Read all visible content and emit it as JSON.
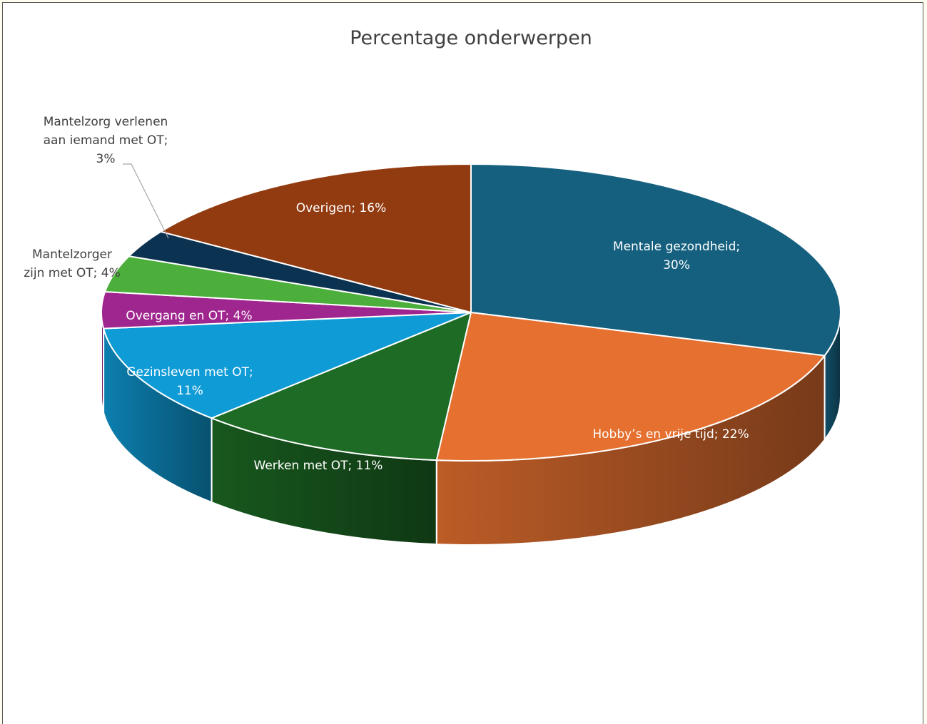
{
  "chart_data": {
    "type": "pie",
    "style": "3d",
    "title": "Percentage onderwerpen",
    "label_format": "{category}; {value}%",
    "categories": [
      "Mentale gezondheid",
      "Hobby’s en vrije tijd",
      "Werken met OT",
      "Gezinsleven met OT",
      "Overgang en OT",
      "Mantelzorger zijn met OT",
      "Mantelzorg verlenen aan iemand met OT",
      "Overigen"
    ],
    "values": [
      30,
      22,
      11,
      11,
      4,
      4,
      3,
      16
    ],
    "colors": [
      "#16607f",
      "#e57030",
      "#1d6b25",
      "#0f9bd6",
      "#a0268f",
      "#4daf3b",
      "#0b3250",
      "#933b10"
    ],
    "data_labels": [
      {
        "lines": [
          "Mentale gezondheid;",
          "30%"
        ]
      },
      {
        "lines": [
          "Hobby’s en vrije tijd; 22%"
        ]
      },
      {
        "lines": [
          "Werken met OT; 11%"
        ]
      },
      {
        "lines": [
          "Gezinsleven met OT;",
          "11%"
        ]
      },
      {
        "lines": [
          "Overgang en OT; 4%"
        ]
      },
      {
        "lines": [
          "Mantelzorger",
          "zijn met OT; 4%"
        ]
      },
      {
        "lines": [
          "Mantelzorg verlenen",
          "aan iemand met OT;",
          "3%"
        ]
      },
      {
        "lines": [
          "Overigen; 16%"
        ]
      }
    ],
    "legend": "none"
  }
}
